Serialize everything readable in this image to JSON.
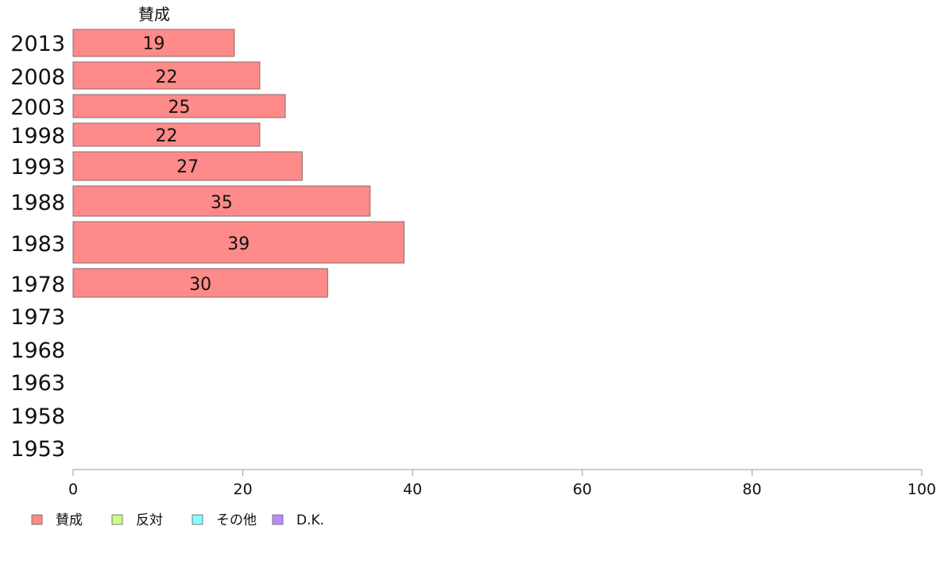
{
  "chart_data": {
    "type": "bar",
    "orientation": "horizontal",
    "stacked": true,
    "series_header": "賛成",
    "categories": [
      "2013",
      "2008",
      "2003",
      "1998",
      "1993",
      "1988",
      "1983",
      "1978",
      "1973",
      "1968",
      "1963",
      "1958",
      "1953"
    ],
    "series": [
      {
        "name": "賛成",
        "color": "#ff8a8a",
        "values": [
          19,
          22,
          25,
          22,
          27,
          35,
          39,
          30,
          null,
          null,
          null,
          null,
          null
        ]
      },
      {
        "name": "反対",
        "color": "#ccff88",
        "values": [
          null,
          null,
          null,
          null,
          null,
          null,
          null,
          null,
          null,
          null,
          null,
          null,
          null
        ]
      },
      {
        "name": "その他",
        "color": "#88ffff",
        "values": [
          null,
          null,
          null,
          null,
          null,
          null,
          null,
          null,
          null,
          null,
          null,
          null,
          null
        ]
      },
      {
        "name": "D.K.",
        "color": "#bb88ff",
        "values": [
          null,
          null,
          null,
          null,
          null,
          null,
          null,
          null,
          null,
          null,
          null,
          null,
          null
        ]
      }
    ],
    "xlim": [
      0,
      100
    ],
    "xticks": [
      "0",
      "20",
      "40",
      "60",
      "80",
      "100"
    ],
    "grid": false,
    "legend_position": "bottom-left"
  }
}
